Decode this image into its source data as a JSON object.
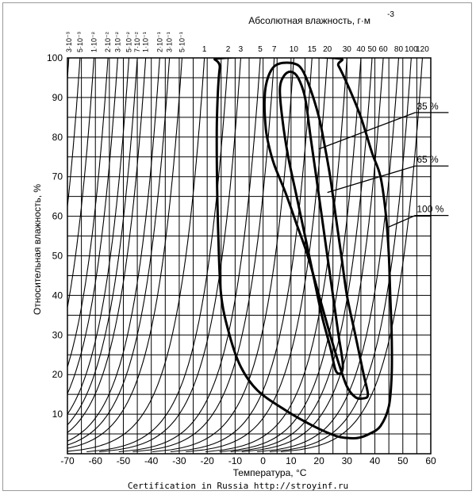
{
  "chart_data": {
    "type": "line",
    "title": "",
    "xlabel": "Температура, °С",
    "ylabel": "Относительная влажность, %",
    "top_axis_label": "Абсолютная влажность, г·м",
    "top_axis_label_exponent": "-3",
    "xlim": [
      -70,
      60
    ],
    "ylim": [
      0,
      100
    ],
    "x_ticks": [
      -70,
      -60,
      -50,
      -40,
      -30,
      -20,
      -10,
      0,
      10,
      20,
      30,
      40,
      50,
      60
    ],
    "y_ticks": [
      10,
      20,
      30,
      40,
      50,
      60,
      70,
      80,
      90,
      100
    ],
    "grid": true,
    "absolute_humidity_lines": [
      {
        "label": "3·10⁻³",
        "value": 0.003,
        "t_at_100": -69.5
      },
      {
        "label": "5·10⁻³",
        "value": 0.005,
        "t_at_100": -65.5
      },
      {
        "label": "1·10⁻²",
        "value": 0.01,
        "t_at_100": -60.5
      },
      {
        "label": "2·10⁻²",
        "value": 0.02,
        "t_at_100": -55.5
      },
      {
        "label": "3·10⁻²",
        "value": 0.03,
        "t_at_100": -52
      },
      {
        "label": "5·10⁻²",
        "value": 0.05,
        "t_at_100": -48
      },
      {
        "label": "7·10⁻²",
        "value": 0.07,
        "t_at_100": -45
      },
      {
        "label": "1·10⁻¹",
        "value": 0.1,
        "t_at_100": -42
      },
      {
        "label": "2·10⁻¹",
        "value": 0.2,
        "t_at_100": -37
      },
      {
        "label": "3·10⁻¹",
        "value": 0.3,
        "t_at_100": -33.5
      },
      {
        "label": "5·10⁻¹",
        "value": 0.5,
        "t_at_100": -29
      },
      {
        "label": "1",
        "value": 1,
        "t_at_100": -21
      },
      {
        "label": "2",
        "value": 2,
        "t_at_100": -12.5
      },
      {
        "label": "3",
        "value": 3,
        "t_at_100": -8
      },
      {
        "label": "5",
        "value": 5,
        "t_at_100": -1
      },
      {
        "label": "7",
        "value": 7,
        "t_at_100": 4
      },
      {
        "label": "10",
        "value": 10,
        "t_at_100": 11
      },
      {
        "label": "15",
        "value": 15,
        "t_at_100": 17.5
      },
      {
        "label": "20",
        "value": 20,
        "t_at_100": 23
      },
      {
        "label": "30",
        "value": 30,
        "t_at_100": 30
      },
      {
        "label": "40",
        "value": 40,
        "t_at_100": 35
      },
      {
        "label": "50",
        "value": 50,
        "t_at_100": 39
      },
      {
        "label": "60",
        "value": 60,
        "t_at_100": 43
      },
      {
        "label": "80",
        "value": 80,
        "t_at_100": 48.5
      },
      {
        "label": "100",
        "value": 100,
        "t_at_100": 53
      },
      {
        "label": "120",
        "value": 120,
        "t_at_100": 57
      }
    ],
    "series": [
      {
        "name": "35 %",
        "points": [
          [
            6,
            92
          ],
          [
            7.5,
            95.5
          ],
          [
            10,
            96.5
          ],
          [
            12.5,
            95
          ],
          [
            15,
            90
          ],
          [
            17,
            80
          ],
          [
            19,
            70
          ],
          [
            21,
            60
          ],
          [
            23,
            50
          ],
          [
            25,
            40
          ],
          [
            27,
            30
          ],
          [
            28.5,
            23
          ],
          [
            28,
            20.5
          ],
          [
            26,
            21
          ],
          [
            24,
            27
          ],
          [
            21,
            35
          ],
          [
            18,
            45
          ],
          [
            15,
            55
          ],
          [
            12,
            65
          ],
          [
            9,
            75
          ],
          [
            7,
            84
          ],
          [
            6,
            92
          ]
        ]
      },
      {
        "name": "65 %",
        "points": [
          [
            1,
            93
          ],
          [
            3,
            97
          ],
          [
            6,
            98.6
          ],
          [
            11,
            98.6
          ],
          [
            14,
            97
          ],
          [
            17,
            92
          ],
          [
            20,
            85
          ],
          [
            22,
            78
          ],
          [
            24,
            70
          ],
          [
            26,
            60
          ],
          [
            28,
            50
          ],
          [
            30,
            40
          ],
          [
            33,
            30
          ],
          [
            36,
            20
          ],
          [
            37.5,
            15
          ],
          [
            36,
            14
          ],
          [
            33,
            14.3
          ],
          [
            30,
            17
          ],
          [
            27,
            23
          ],
          [
            24,
            30
          ],
          [
            20,
            40
          ],
          [
            16,
            50
          ],
          [
            12,
            58
          ],
          [
            8,
            66
          ],
          [
            4,
            73
          ],
          [
            2,
            78
          ],
          [
            1,
            82
          ],
          [
            0.5,
            88
          ],
          [
            1,
            93
          ]
        ]
      },
      {
        "name": "100 %",
        "points": [
          [
            -15.5,
            97.5
          ],
          [
            -14,
            100
          ],
          [
            25,
            100
          ],
          [
            27,
            98
          ],
          [
            31,
            92
          ],
          [
            35,
            85
          ],
          [
            39,
            76
          ],
          [
            42,
            70
          ],
          [
            44,
            60
          ],
          [
            45,
            50
          ],
          [
            45.5,
            40
          ],
          [
            46,
            30
          ],
          [
            46,
            20
          ],
          [
            45,
            12
          ],
          [
            42,
            7
          ],
          [
            38,
            5
          ],
          [
            34,
            4
          ],
          [
            30,
            4
          ],
          [
            26,
            4.5
          ],
          [
            18,
            7
          ],
          [
            8,
            11
          ],
          [
            -2,
            16
          ],
          [
            -8,
            22
          ],
          [
            -12,
            30
          ],
          [
            -15,
            40
          ],
          [
            -16,
            55
          ],
          [
            -16.5,
            70
          ],
          [
            -16.5,
            85
          ],
          [
            -15.5,
            97.5
          ]
        ]
      }
    ],
    "annotations": [
      {
        "text": "35 %",
        "x": 55,
        "y": 87,
        "points_to": [
          20,
          77
        ]
      },
      {
        "text": "65 %",
        "x": 55,
        "y": 73.5,
        "points_to": [
          23,
          66
        ]
      },
      {
        "text": "100 %",
        "x": 55,
        "y": 61,
        "points_to": [
          44,
          57
        ]
      }
    ]
  },
  "footer": "Certification in Russia http://stroyinf.ru"
}
